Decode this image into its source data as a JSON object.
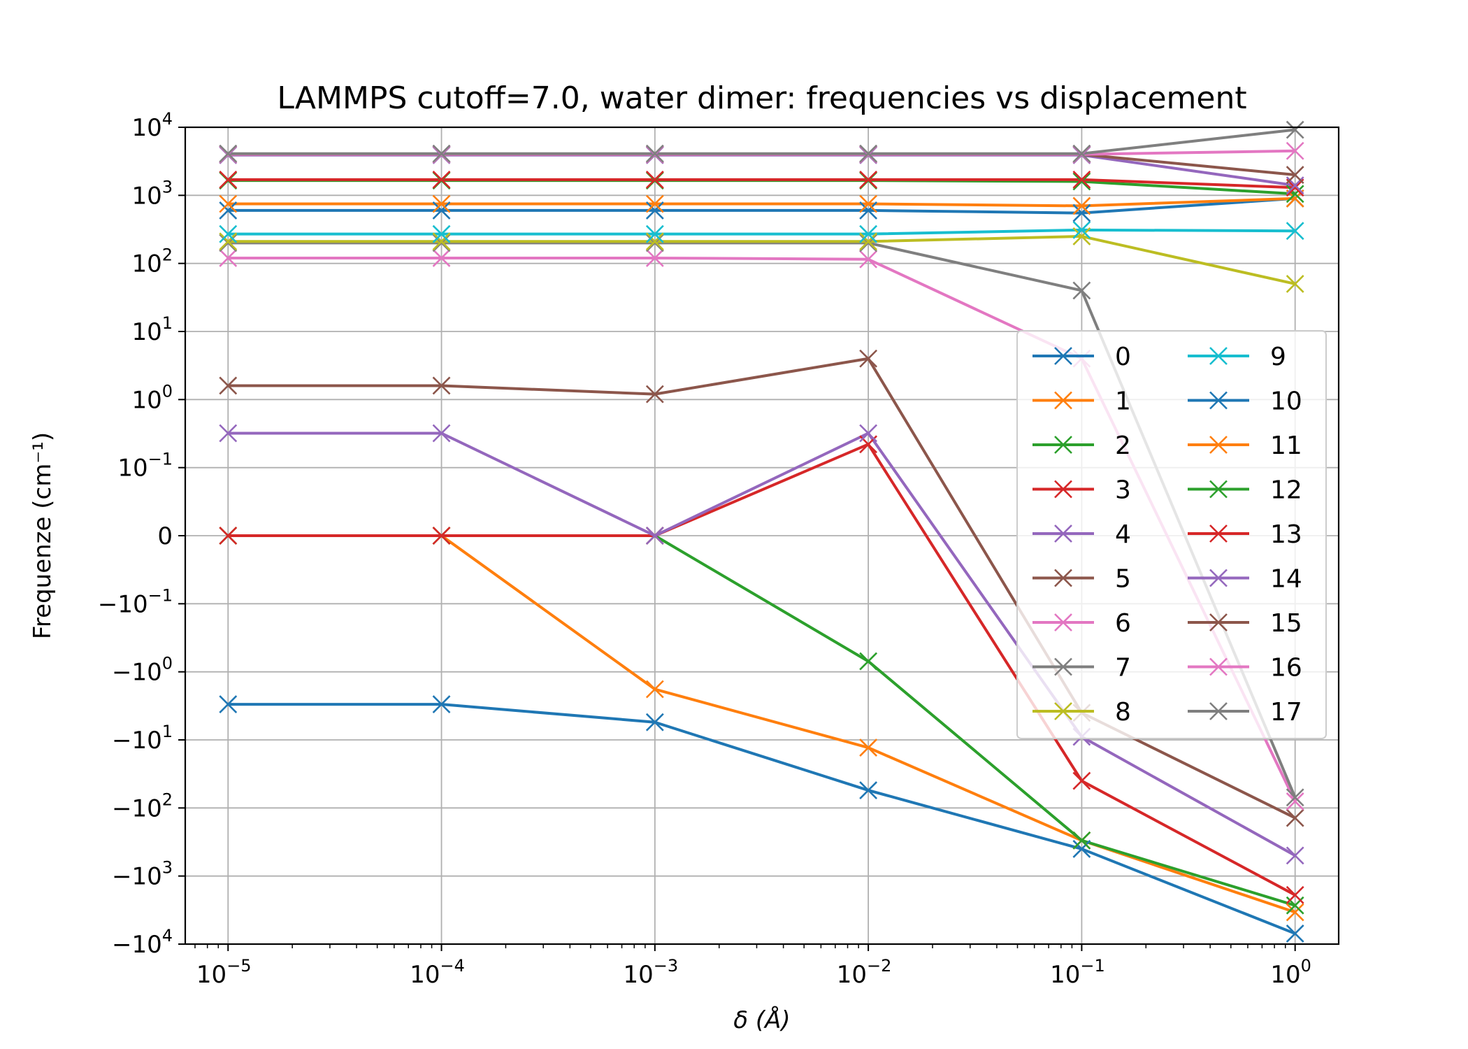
{
  "chart_data": {
    "type": "line",
    "title": "LAMMPS cutoff=7.0, water dimer: frequencies vs displacement",
    "xlabel": "δ (Å)",
    "ylabel": "Frequenze (cm⁻¹)",
    "xscale": "log",
    "yscale": "symlog",
    "grid": true,
    "legend_position": "center-right",
    "legend_columns": 2,
    "x": [
      1e-05,
      0.0001,
      0.001,
      0.01,
      0.1,
      1
    ],
    "xticks": [
      {
        "base": "10",
        "exp": "−5"
      },
      {
        "base": "10",
        "exp": "−4"
      },
      {
        "base": "10",
        "exp": "−3"
      },
      {
        "base": "10",
        "exp": "−2"
      },
      {
        "base": "10",
        "exp": "−1"
      },
      {
        "base": "10",
        "exp": "0"
      }
    ],
    "yticks": [
      {
        "base": "10",
        "exp": "4"
      },
      {
        "base": "10",
        "exp": "3"
      },
      {
        "base": "10",
        "exp": "2"
      },
      {
        "base": "10",
        "exp": "1"
      },
      {
        "base": "10",
        "exp": "0"
      },
      {
        "base": "10",
        "exp": "−1"
      },
      {
        "base": "0",
        "exp": ""
      },
      {
        "base": "−10",
        "exp": "−1"
      },
      {
        "base": "−10",
        "exp": "0"
      },
      {
        "base": "−10",
        "exp": "1"
      },
      {
        "base": "−10",
        "exp": "2"
      },
      {
        "base": "−10",
        "exp": "3"
      },
      {
        "base": "−10",
        "exp": "4"
      }
    ],
    "colors": [
      "#1f77b4",
      "#ff7f0e",
      "#2ca02c",
      "#d62728",
      "#9467bd",
      "#8c564b",
      "#e377c2",
      "#7f7f7f",
      "#bcbd22",
      "#17becf"
    ],
    "series": [
      {
        "name": "0",
        "values": [
          -3.0,
          -3.0,
          -5.5,
          -55,
          -400,
          -7000
        ]
      },
      {
        "name": "1",
        "values": [
          0,
          0,
          -1.8,
          -13,
          -300,
          -3400
        ]
      },
      {
        "name": "2",
        "values": [
          0,
          0,
          0,
          -0.7,
          -300,
          -2700
        ]
      },
      {
        "name": "3",
        "values": [
          0,
          0,
          0,
          0.22,
          -40,
          -1900
        ]
      },
      {
        "name": "4",
        "values": [
          0.32,
          0.32,
          0,
          0.32,
          -9,
          -500
        ]
      },
      {
        "name": "5",
        "values": [
          1.6,
          1.6,
          1.2,
          4,
          -4,
          -140
        ]
      },
      {
        "name": "6",
        "values": [
          120,
          120,
          120,
          115,
          4,
          -80
        ]
      },
      {
        "name": "7",
        "values": [
          200,
          200,
          200,
          200,
          40,
          -70
        ]
      },
      {
        "name": "8",
        "values": [
          210,
          210,
          210,
          210,
          250,
          50
        ]
      },
      {
        "name": "9",
        "values": [
          270,
          270,
          270,
          270,
          310,
          300
        ]
      },
      {
        "name": "10",
        "values": [
          600,
          600,
          600,
          600,
          550,
          900
        ]
      },
      {
        "name": "11",
        "values": [
          750,
          750,
          750,
          750,
          700,
          900
        ]
      },
      {
        "name": "12",
        "values": [
          1650,
          1650,
          1650,
          1650,
          1600,
          1050
        ]
      },
      {
        "name": "13",
        "values": [
          1700,
          1700,
          1700,
          1700,
          1700,
          1300
        ]
      },
      {
        "name": "14",
        "values": [
          3900,
          3900,
          3900,
          3900,
          3900,
          1400
        ]
      },
      {
        "name": "15",
        "values": [
          4000,
          4000,
          4000,
          4000,
          4000,
          2000
        ]
      },
      {
        "name": "16",
        "values": [
          4000,
          4000,
          4000,
          4000,
          4000,
          4500
        ]
      },
      {
        "name": "17",
        "values": [
          4100,
          4100,
          4100,
          4100,
          4100,
          9200
        ]
      }
    ],
    "ylim": [
      -10000,
      10000
    ],
    "xlim": [
      6.3e-06,
      1.6
    ]
  }
}
